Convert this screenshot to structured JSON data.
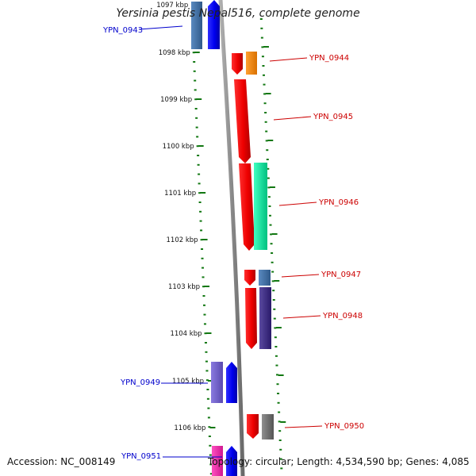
{
  "title": "Yersinia pestis Nepal516, complete genome",
  "footer": {
    "accession": "Accession: NC_008149",
    "summary": "Topology: circular; Length: 4,534,590 bp; Genes: 4,085"
  },
  "ticks": [
    {
      "label": "1097 kbp"
    },
    {
      "label": "1098 kbp"
    },
    {
      "label": "1099 kbp"
    },
    {
      "label": "1100 kbp"
    },
    {
      "label": "1101 kbp"
    },
    {
      "label": "1102 kbp"
    },
    {
      "label": "1103 kbp"
    },
    {
      "label": "1104 kbp"
    },
    {
      "label": "1105 kbp"
    },
    {
      "label": "1106 kbp"
    }
  ],
  "genes": [
    {
      "name": "YPN_0943",
      "strand": "left",
      "color": "#0000ee"
    },
    {
      "name": "YPN_0944",
      "strand": "right",
      "color": "#dd0000"
    },
    {
      "name": "YPN_0945",
      "strand": "right",
      "color": "#dd0000"
    },
    {
      "name": "YPN_0946",
      "strand": "right",
      "color": "#dd0000"
    },
    {
      "name": "YPN_0947",
      "strand": "right",
      "color": "#dd0000"
    },
    {
      "name": "YPN_0948",
      "strand": "right",
      "color": "#dd0000"
    },
    {
      "name": "YPN_0949",
      "strand": "left",
      "color": "#0000ee"
    },
    {
      "name": "YPN_0950",
      "strand": "right",
      "color": "#dd0000"
    },
    {
      "name": "YPN_0951",
      "strand": "left",
      "color": "#0000ee"
    }
  ],
  "colors": {
    "tick": "#117711",
    "backbone": "#888888",
    "forward_gene": "#ee0000",
    "reverse_gene": "#0000ee",
    "label_forward": "#cc0000",
    "label_reverse": "#0000cc"
  }
}
